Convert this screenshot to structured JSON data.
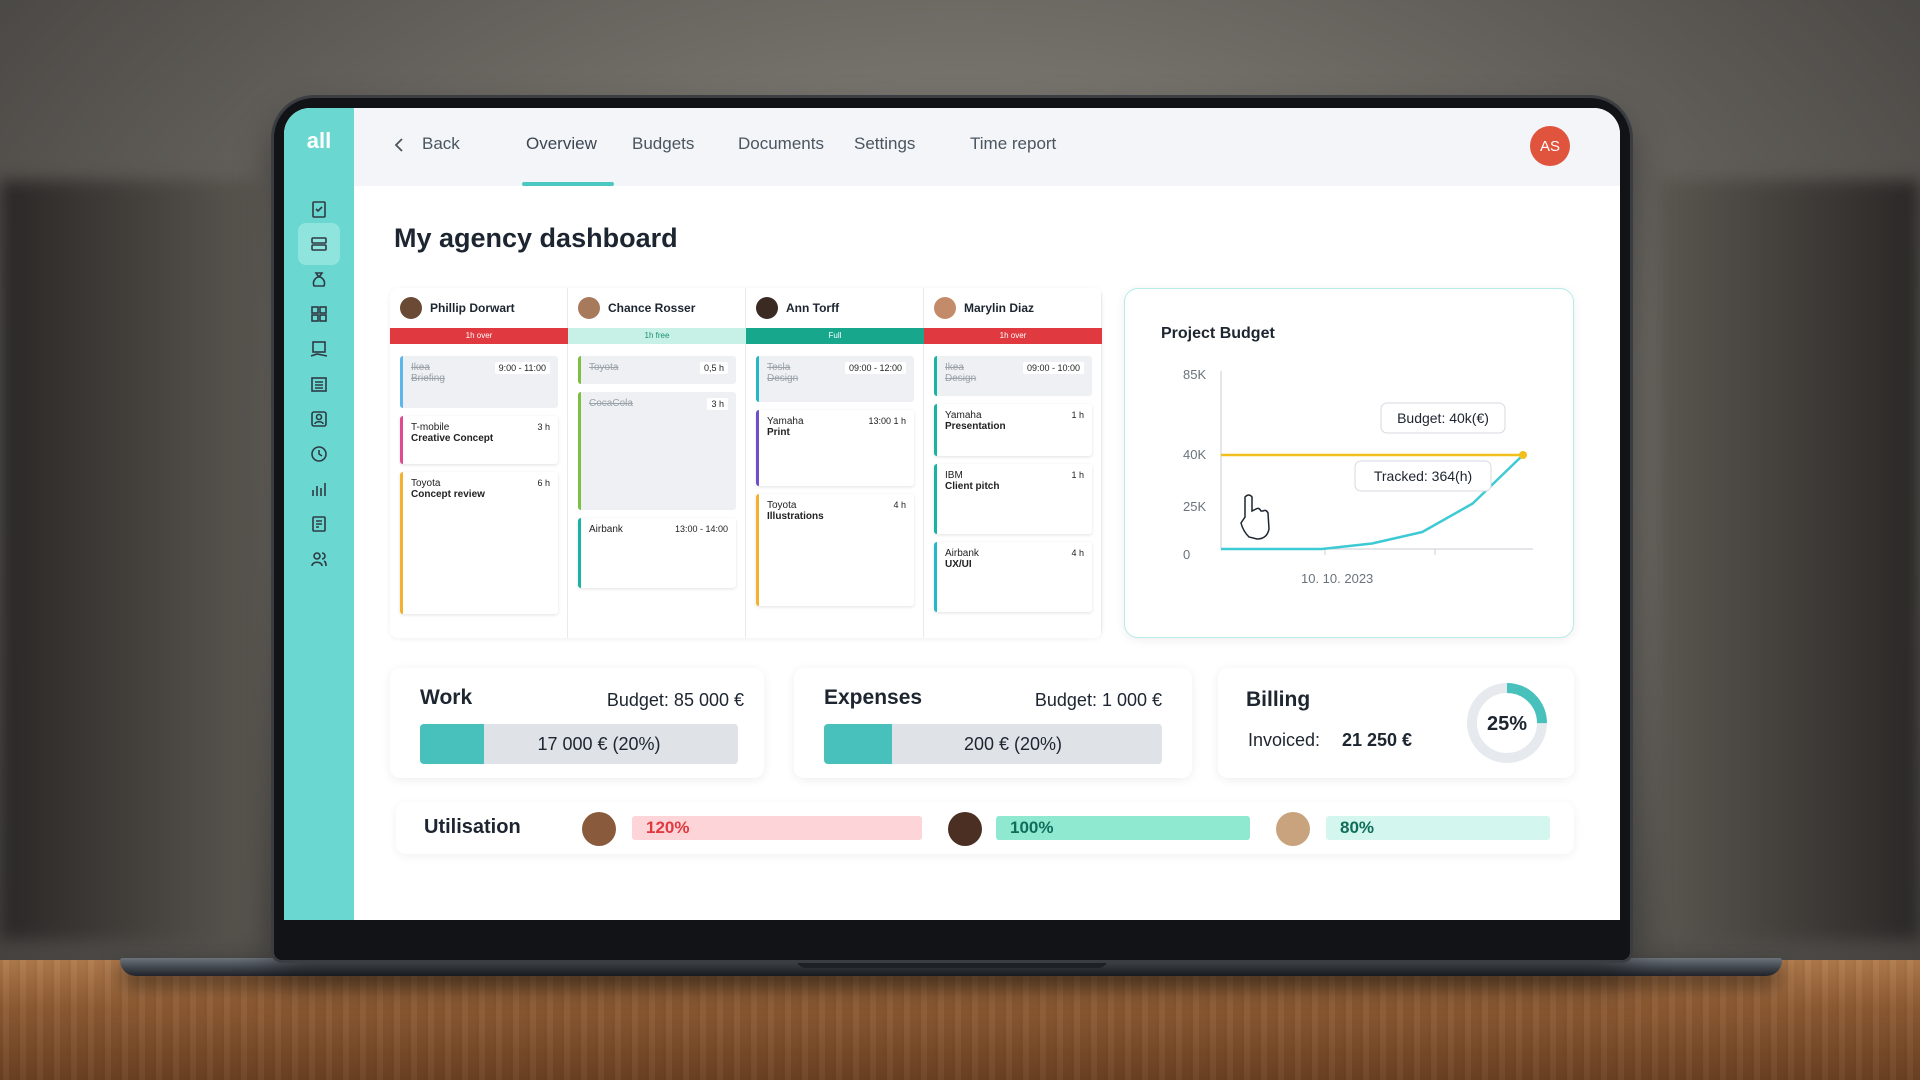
{
  "app": {
    "logo": "all"
  },
  "header": {
    "back_label": "Back",
    "tabs": [
      {
        "label": "Overview",
        "active": true
      },
      {
        "label": "Budgets"
      },
      {
        "label": "Documents"
      },
      {
        "label": "Settings"
      },
      {
        "label": "Time report"
      }
    ],
    "user_initials": "AS"
  },
  "sidebar": {
    "icons": [
      "clipboard-check-icon",
      "list-icon",
      "money-bag-icon",
      "grid-icon",
      "money-hand-icon",
      "building-icon",
      "contact-icon",
      "clock-icon",
      "bar-chart-icon",
      "report-icon",
      "users-icon"
    ],
    "active_index": 1
  },
  "page": {
    "title": "My agency dashboard"
  },
  "schedule": {
    "people": [
      {
        "name": "Phillip Dorwart",
        "status": "1h over",
        "status_color": "#e0393f",
        "tasks": [
          {
            "client": "Ikea",
            "name": "Briefing",
            "time": "9:00 - 11:00",
            "done": true,
            "color": "#5db6ea",
            "h": 52
          },
          {
            "client": "T-mobile",
            "name": "Creative Concept",
            "time": "3 h",
            "done": false,
            "color": "#e2498f",
            "h": 48
          },
          {
            "client": "Toyota",
            "name": "Concept review",
            "time": "6 h",
            "done": false,
            "color": "#f2b230",
            "h": 142
          }
        ]
      },
      {
        "name": "Chance Rosser",
        "status": "1h free",
        "status_color": "#c7f1e6",
        "status_text_color": "#1a8f74",
        "tasks": [
          {
            "client": "Toyota",
            "name": "",
            "time": "0,5 h",
            "done": true,
            "color": "#7cc043",
            "h": 28
          },
          {
            "client": "CocaCola",
            "name": "",
            "time": "3 h",
            "done": true,
            "color": "#7cc043",
            "h": 118
          },
          {
            "client": "Airbank",
            "name": "",
            "time": "13:00 - 14:00",
            "done": false,
            "color": "#17b3a3",
            "h": 70
          }
        ]
      },
      {
        "name": "Ann Torff",
        "status": "Full",
        "status_color": "#17a78d",
        "tasks": [
          {
            "client": "Tesla",
            "name": "Design",
            "time": "09:00 - 12:00",
            "done": true,
            "color": "#23b8c8",
            "h": 46
          },
          {
            "client": "Yamaha",
            "name": "Print",
            "time": "13:00   1 h",
            "done": false,
            "color": "#6d50c9",
            "h": 76
          },
          {
            "client": "Toyota",
            "name": "Illustrations",
            "time": "4 h",
            "done": false,
            "color": "#f2b230",
            "h": 112
          }
        ]
      },
      {
        "name": "Marylin Diaz",
        "status": "1h over",
        "status_color": "#e0393f",
        "tasks": [
          {
            "client": "Ikea",
            "name": "Design",
            "time": "09:00 - 10:00",
            "done": true,
            "color": "#17b3a3",
            "h": 40
          },
          {
            "client": "Yamaha",
            "name": "Presentation",
            "time": "1 h",
            "done": false,
            "color": "#17b3a3",
            "h": 52
          },
          {
            "client": "IBM",
            "name": "Client pitch",
            "time": "1 h",
            "done": false,
            "color": "#17b3a3",
            "h": 70
          },
          {
            "client": "Airbank",
            "name": "UX/UI",
            "time": "4 h",
            "done": false,
            "color": "#23b8c8",
            "h": 70
          }
        ]
      }
    ]
  },
  "project_budget": {
    "title": "Project Budget",
    "budget_tooltip": "Budget:  40k(€)",
    "tracked_tooltip": "Tracked:  364(h)",
    "chart_data": {
      "type": "line",
      "y_ticks": [
        "85K",
        "40K",
        "25K",
        "0"
      ],
      "y_tick_values": [
        85,
        40,
        25,
        0
      ],
      "x_label": "10. 10. 2023",
      "ylim": [
        0,
        85
      ],
      "series": [
        {
          "name": "Budget",
          "values": [
            40,
            40,
            40,
            40,
            40,
            40,
            40
          ],
          "color": "#f2bf1c"
        },
        {
          "name": "Tracked",
          "values": [
            0,
            1,
            3,
            6,
            12,
            26,
            40
          ],
          "color": "#3ecad4"
        }
      ]
    }
  },
  "work": {
    "title": "Work",
    "budget": "Budget: 85 000 €",
    "value": "17 000 €  (20%)",
    "fraction": 0.2
  },
  "expenses": {
    "title": "Expenses",
    "budget": "Budget: 1 000 €",
    "value": "200 €  (20%)",
    "fraction": 0.2
  },
  "billing": {
    "title": "Billing",
    "invoiced_label": "Invoiced:",
    "invoiced_value": "21 250 €",
    "percent_label": "25%",
    "fraction": 0.25
  },
  "utilisation": {
    "title": "Utilisation",
    "people": [
      {
        "value": "120%",
        "bg": "#fdd5d8",
        "fg": "#e0393f"
      },
      {
        "value": "100%",
        "bg": "#8fe9d1",
        "fg": "#0f6e5a"
      },
      {
        "value": "80%",
        "bg": "#d3f6ee",
        "fg": "#0f6e5a"
      }
    ]
  }
}
